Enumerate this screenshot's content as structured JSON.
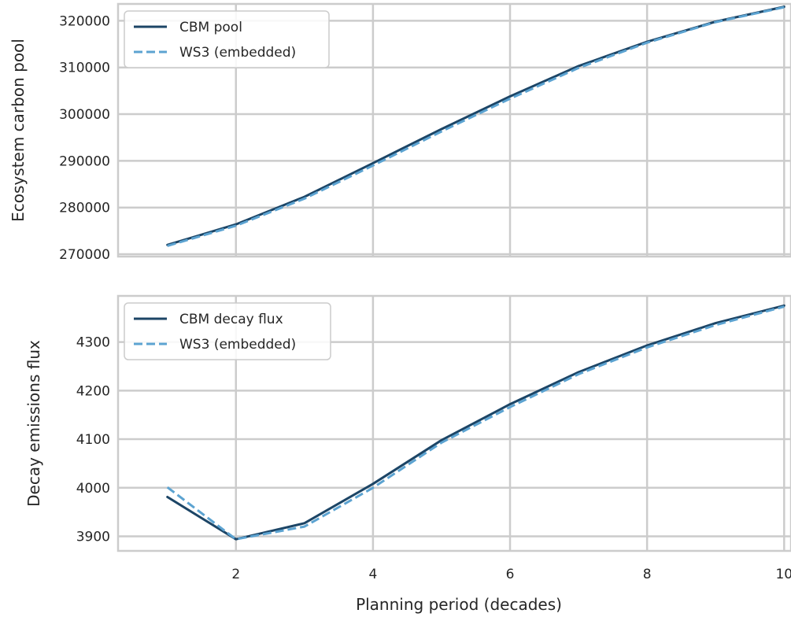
{
  "chart_data": [
    {
      "type": "line",
      "title": "",
      "xlabel": "",
      "ylabel": "Ecosystem carbon pool",
      "x": [
        1,
        2,
        3,
        4,
        5,
        6,
        7,
        8,
        9,
        10
      ],
      "xlim": [
        0.28,
        10.1
      ],
      "ylim": [
        269500,
        323600
      ],
      "xticks": [
        2,
        4,
        6,
        8,
        10
      ],
      "yticks": [
        270000,
        280000,
        290000,
        300000,
        310000,
        320000
      ],
      "grid": true,
      "legend_position": "upper-left",
      "series": [
        {
          "name": "CBM pool",
          "style": "solid",
          "color": "#1c4566",
          "values": [
            272000,
            276400,
            282300,
            289500,
            296800,
            303800,
            310300,
            315500,
            319800,
            323000
          ]
        },
        {
          "name": "WS3 (embedded)",
          "style": "dashed",
          "color": "#5ca3d1",
          "values": [
            271800,
            276100,
            281900,
            289000,
            296300,
            303300,
            309900,
            315300,
            319700,
            322900
          ]
        }
      ]
    },
    {
      "type": "line",
      "title": "",
      "xlabel": "Planning period (decades)",
      "ylabel": "Decay emissions flux",
      "x": [
        1,
        2,
        3,
        4,
        5,
        6,
        7,
        8,
        9,
        10
      ],
      "xlim": [
        0.28,
        10.1
      ],
      "ylim": [
        3870,
        4395
      ],
      "xticks": [
        2,
        4,
        6,
        8,
        10
      ],
      "yticks": [
        3900,
        4000,
        4100,
        4200,
        4300
      ],
      "grid": true,
      "legend_position": "upper-left",
      "series": [
        {
          "name": "CBM decay flux",
          "style": "solid",
          "color": "#1c4566",
          "values": [
            3981,
            3894,
            3927,
            4008,
            4098,
            4172,
            4238,
            4293,
            4339,
            4375
          ]
        },
        {
          "name": "WS3 (embedded)",
          "style": "dashed",
          "color": "#5ca3d1",
          "values": [
            4001,
            3894,
            3920,
            4000,
            4093,
            4166,
            4234,
            4289,
            4335,
            4373
          ]
        }
      ]
    }
  ]
}
